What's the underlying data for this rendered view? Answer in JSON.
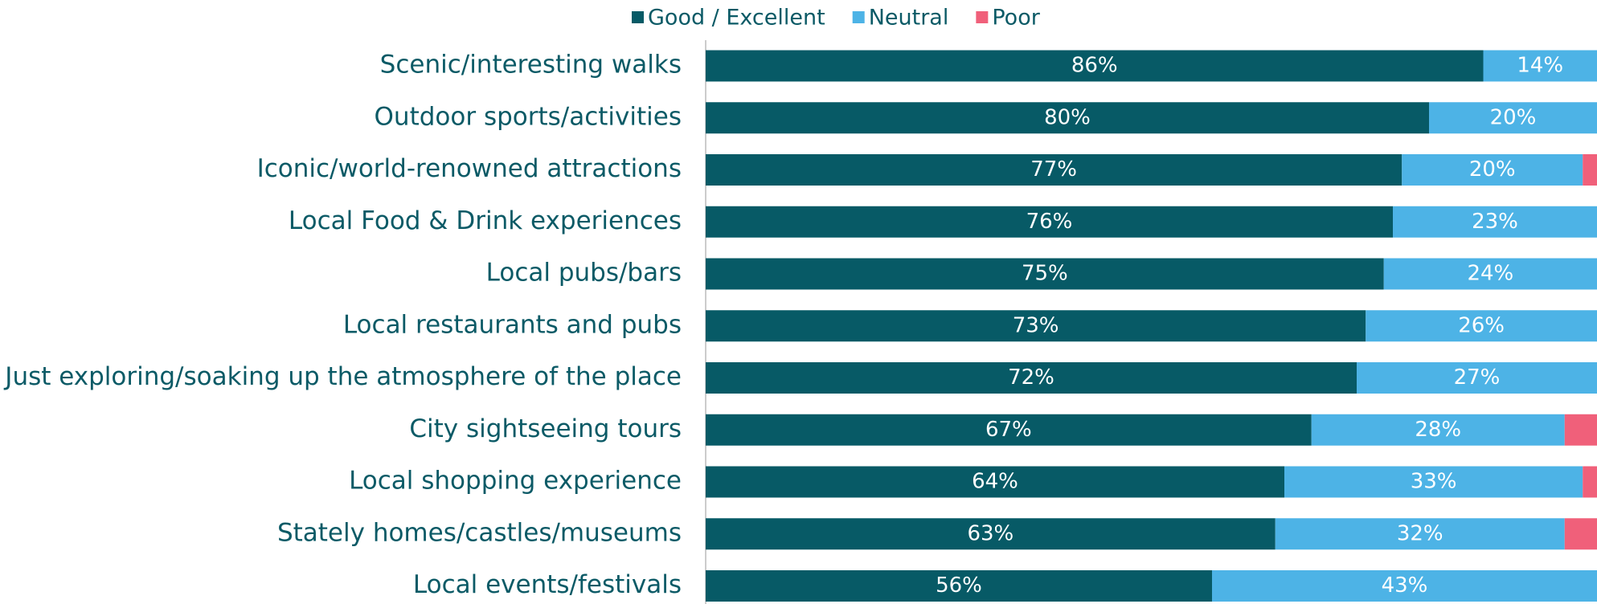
{
  "chart_data": {
    "type": "stacked_barh",
    "categories": [
      "Scenic/interesting walks",
      "Outdoor sports/activities",
      "Iconic/world-renowned attractions",
      "Local Food & Drink experiences",
      "Local pubs/bars",
      "Local restaurants and pubs",
      "Just exploring/soaking up the atmosphere of the place",
      "City sightseeing tours",
      "Local shopping experience",
      "Stately homes/castles/museums",
      "Local events/festivals"
    ],
    "series": [
      {
        "name": "Good / Excellent",
        "color": "#075a66",
        "values": [
          86,
          80,
          77,
          76,
          75,
          73,
          72,
          67,
          64,
          63,
          56
        ],
        "value_labels": [
          "86%",
          "80%",
          "77%",
          "76%",
          "75%",
          "73%",
          "72%",
          "67%",
          "64%",
          "63%",
          "56%"
        ]
      },
      {
        "name": "Neutral",
        "color": "#4db3e6",
        "values": [
          14,
          20,
          20,
          23,
          24,
          26,
          27,
          28,
          33,
          32,
          43
        ],
        "value_labels": [
          "14%",
          "20%",
          "20%",
          "23%",
          "24%",
          "26%",
          "27%",
          "28%",
          "33%",
          "32%",
          "43%"
        ]
      },
      {
        "name": "Poor",
        "color": "#f0607a",
        "values": [
          0,
          0,
          3,
          1,
          1,
          1,
          1,
          5,
          3,
          5,
          1
        ]
      }
    ],
    "xlim": [
      0,
      100
    ],
    "legend": "top"
  }
}
